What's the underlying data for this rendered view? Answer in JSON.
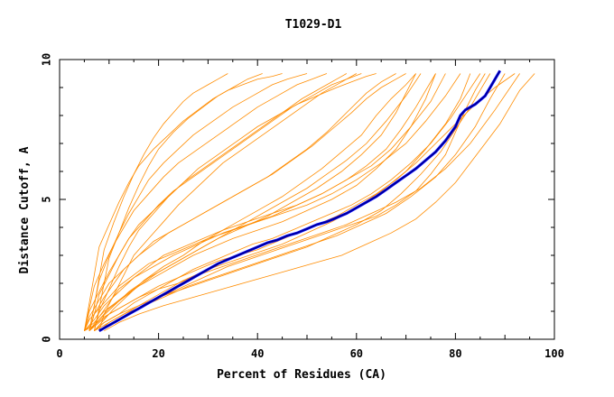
{
  "chart_data": {
    "type": "line",
    "title": "T1029-D1",
    "xlabel": "Percent of Residues (CA)",
    "ylabel": "Distance Cutoff, A",
    "xlim": [
      0,
      100
    ],
    "ylim": [
      0,
      10
    ],
    "xticks": [
      0,
      20,
      40,
      60,
      80,
      100
    ],
    "yticks": [
      0,
      5,
      10
    ],
    "grid": false,
    "colors": {
      "models": "#ff8c00",
      "highlight": "#00008b",
      "highlight_outline": "#0000ff"
    },
    "series": [
      {
        "x": [
          5,
          7,
          9,
          11,
          14,
          17,
          20,
          24,
          28,
          32,
          36,
          40,
          44,
          48,
          52,
          56,
          60,
          64,
          68,
          72,
          76,
          80,
          84,
          88,
          92
        ],
        "y": [
          0.3,
          0.5,
          0.8,
          1.0,
          1.3,
          1.6,
          1.9,
          2.2,
          2.5,
          2.8,
          3.0,
          3.2,
          3.5,
          3.8,
          4.1,
          4.4,
          4.8,
          5.2,
          5.7,
          6.3,
          7.0,
          7.7,
          8.4,
          9.0,
          9.5
        ]
      },
      {
        "x": [
          6,
          8,
          10,
          13,
          16,
          20,
          24,
          28,
          33,
          38,
          43,
          48,
          53,
          58,
          63,
          68,
          73,
          78,
          83,
          88,
          93
        ],
        "y": [
          0.3,
          0.6,
          0.9,
          1.2,
          1.5,
          1.8,
          2.0,
          2.3,
          2.6,
          2.9,
          3.2,
          3.5,
          3.8,
          4.1,
          4.5,
          4.9,
          5.4,
          6.1,
          7.0,
          8.2,
          9.5
        ]
      },
      {
        "x": [
          7,
          9,
          12,
          15,
          19,
          23,
          27,
          31,
          35,
          39,
          43,
          47,
          51,
          55,
          59,
          63,
          67,
          71,
          75,
          79,
          82,
          85
        ],
        "y": [
          0.3,
          0.6,
          0.9,
          1.3,
          1.7,
          2.1,
          2.5,
          2.8,
          3.1,
          3.4,
          3.6,
          3.9,
          4.2,
          4.5,
          4.8,
          5.2,
          5.7,
          6.3,
          7.0,
          7.9,
          8.7,
          9.5
        ]
      },
      {
        "x": [
          5,
          6,
          8,
          10,
          12,
          15,
          18,
          22,
          26,
          30,
          35,
          40,
          45,
          50,
          55,
          60,
          65,
          70,
          74,
          78,
          81
        ],
        "y": [
          0.3,
          0.7,
          1.1,
          1.5,
          1.9,
          2.3,
          2.7,
          3.0,
          3.3,
          3.6,
          3.9,
          4.2,
          4.5,
          4.8,
          5.2,
          5.7,
          6.3,
          7.0,
          7.8,
          8.7,
          9.5
        ]
      },
      {
        "x": [
          6,
          8,
          10,
          12,
          15,
          18,
          21,
          25,
          29,
          33,
          38,
          43,
          48,
          53,
          58,
          63,
          67,
          71,
          75,
          78
        ],
        "y": [
          0.3,
          0.8,
          1.3,
          1.8,
          2.2,
          2.6,
          3.0,
          3.3,
          3.6,
          3.9,
          4.2,
          4.5,
          4.8,
          5.2,
          5.7,
          6.2,
          6.8,
          7.6,
          8.5,
          9.5
        ]
      },
      {
        "x": [
          7,
          10,
          13,
          17,
          21,
          26,
          31,
          36,
          41,
          46,
          51,
          56,
          61,
          66,
          71,
          76,
          80,
          84,
          87,
          90
        ],
        "y": [
          0.3,
          0.6,
          0.9,
          1.2,
          1.5,
          1.9,
          2.2,
          2.5,
          2.8,
          3.1,
          3.4,
          3.7,
          4.1,
          4.5,
          5.1,
          5.8,
          6.6,
          7.6,
          8.6,
          9.5
        ]
      },
      {
        "x": [
          8,
          11,
          15,
          19,
          24,
          29,
          34,
          39,
          44,
          49,
          54,
          59,
          64,
          68,
          72,
          75,
          78,
          80,
          82,
          84,
          86
        ],
        "y": [
          0.3,
          0.6,
          1.0,
          1.4,
          1.8,
          2.2,
          2.6,
          2.9,
          3.2,
          3.5,
          3.8,
          4.1,
          4.4,
          4.8,
          5.3,
          5.9,
          6.6,
          7.4,
          8.2,
          8.9,
          9.5
        ]
      },
      {
        "x": [
          5,
          7,
          9,
          12,
          15,
          19,
          23,
          28,
          33,
          38,
          43,
          48,
          53,
          58,
          62,
          66,
          69,
          72,
          74,
          76
        ],
        "y": [
          0.3,
          0.7,
          1.2,
          1.7,
          2.2,
          2.6,
          3.0,
          3.4,
          3.8,
          4.1,
          4.4,
          4.8,
          5.2,
          5.7,
          6.2,
          6.8,
          7.5,
          8.3,
          8.9,
          9.5
        ]
      },
      {
        "x": [
          9,
          12,
          16,
          21,
          27,
          33,
          39,
          45,
          51,
          57,
          62,
          67,
          72,
          76,
          80,
          83,
          86,
          89,
          91,
          93,
          96
        ],
        "y": [
          0.3,
          0.6,
          0.9,
          1.2,
          1.5,
          1.8,
          2.1,
          2.4,
          2.7,
          3.0,
          3.4,
          3.8,
          4.3,
          4.9,
          5.6,
          6.3,
          7.0,
          7.7,
          8.3,
          8.9,
          9.5
        ]
      },
      {
        "x": [
          6,
          8,
          11,
          14,
          18,
          22,
          26,
          30,
          34,
          38,
          42,
          46,
          50,
          54,
          58,
          62,
          66,
          70,
          73
        ],
        "y": [
          0.3,
          0.7,
          1.2,
          1.7,
          2.2,
          2.6,
          3.0,
          3.4,
          3.8,
          4.2,
          4.6,
          5.0,
          5.4,
          5.9,
          6.4,
          7.0,
          7.8,
          8.7,
          9.5
        ]
      },
      {
        "x": [
          5,
          6,
          8,
          10,
          13,
          16,
          19,
          22,
          26,
          30,
          34,
          38,
          42,
          46,
          50,
          54,
          58,
          62,
          65,
          68
        ],
        "y": [
          0.3,
          0.8,
          1.4,
          2.0,
          2.5,
          3.0,
          3.4,
          3.8,
          4.2,
          4.6,
          5.0,
          5.4,
          5.8,
          6.3,
          6.8,
          7.4,
          8.1,
          8.8,
          9.2,
          9.5
        ]
      },
      {
        "x": [
          7,
          9,
          11,
          14,
          17,
          21,
          25,
          29,
          33,
          37,
          41,
          45,
          49,
          53,
          57,
          61,
          64,
          67,
          70,
          72
        ],
        "y": [
          0.3,
          0.7,
          1.1,
          1.6,
          2.1,
          2.6,
          3.0,
          3.5,
          3.9,
          4.3,
          4.7,
          5.1,
          5.6,
          6.1,
          6.7,
          7.3,
          8.0,
          8.6,
          9.1,
          9.5
        ]
      },
      {
        "x": [
          6,
          7,
          9,
          11,
          13,
          16,
          19,
          23,
          27,
          31,
          35,
          39,
          43,
          47,
          51,
          55,
          59,
          62,
          65,
          68,
          70
        ],
        "y": [
          0.3,
          0.9,
          1.5,
          2.0,
          2.5,
          3.0,
          3.5,
          3.9,
          4.3,
          4.7,
          5.1,
          5.5,
          5.9,
          6.4,
          6.9,
          7.5,
          8.1,
          8.6,
          9.0,
          9.3,
          9.5
        ]
      },
      {
        "x": [
          5,
          6,
          8,
          10,
          12,
          14,
          16,
          19,
          22,
          25,
          28,
          32,
          36,
          40,
          44,
          48,
          52,
          56,
          59,
          62,
          64
        ],
        "y": [
          0.3,
          1.0,
          1.7,
          2.4,
          3.0,
          3.6,
          4.1,
          4.6,
          5.1,
          5.6,
          6.1,
          6.6,
          7.1,
          7.6,
          8.0,
          8.4,
          8.7,
          9.0,
          9.2,
          9.4,
          9.5
        ]
      },
      {
        "x": [
          6,
          7,
          8,
          10,
          12,
          14,
          17,
          20,
          23,
          27,
          31,
          35,
          39,
          43,
          47,
          51,
          55,
          58,
          61
        ],
        "y": [
          0.3,
          0.9,
          1.6,
          2.3,
          3.0,
          3.6,
          4.2,
          4.8,
          5.3,
          5.8,
          6.3,
          6.8,
          7.3,
          7.8,
          8.3,
          8.7,
          9.1,
          9.3,
          9.5
        ]
      },
      {
        "x": [
          7,
          8,
          10,
          12,
          14,
          16,
          19,
          22,
          25,
          29,
          33,
          37,
          41,
          45,
          49,
          53,
          56,
          58
        ],
        "y": [
          0.3,
          1.0,
          1.8,
          2.6,
          3.3,
          3.9,
          4.5,
          5.1,
          5.6,
          6.1,
          6.6,
          7.1,
          7.6,
          8.1,
          8.6,
          9.0,
          9.3,
          9.5
        ]
      },
      {
        "x": [
          5,
          6,
          7,
          9,
          11,
          13,
          15,
          18,
          21,
          24,
          28,
          32,
          36,
          40,
          44,
          48,
          51,
          54
        ],
        "y": [
          0.3,
          1.1,
          1.9,
          2.7,
          3.4,
          4.0,
          4.6,
          5.2,
          5.8,
          6.3,
          6.8,
          7.3,
          7.8,
          8.3,
          8.7,
          9.1,
          9.3,
          9.5
        ]
      },
      {
        "x": [
          6,
          7,
          8,
          10,
          12,
          14,
          16,
          18,
          21,
          24,
          27,
          31,
          35,
          39,
          43,
          46,
          48,
          50
        ],
        "y": [
          0.3,
          1.2,
          2.1,
          3.0,
          3.8,
          4.5,
          5.1,
          5.7,
          6.3,
          6.8,
          7.3,
          7.8,
          8.3,
          8.7,
          9.1,
          9.3,
          9.4,
          9.5
        ]
      },
      {
        "x": [
          5,
          6,
          7,
          8,
          10,
          12,
          14,
          16,
          19,
          22,
          25,
          28,
          31,
          34,
          37,
          40,
          43,
          45
        ],
        "y": [
          0.3,
          1.3,
          2.3,
          3.3,
          4.1,
          4.9,
          5.6,
          6.2,
          6.8,
          7.3,
          7.8,
          8.2,
          8.6,
          8.9,
          9.1,
          9.3,
          9.4,
          9.5
        ]
      },
      {
        "x": [
          6,
          7,
          8,
          9,
          11,
          13,
          15,
          17,
          19,
          21,
          23,
          25,
          27,
          30,
          32,
          34
        ],
        "y": [
          0.3,
          1.2,
          2.2,
          3.2,
          4.2,
          5.1,
          5.9,
          6.6,
          7.2,
          7.7,
          8.1,
          8.5,
          8.8,
          9.1,
          9.3,
          9.5
        ]
      },
      {
        "x": [
          7,
          8,
          9,
          10,
          12,
          14,
          16,
          18,
          20,
          23,
          26,
          29,
          32,
          35,
          38,
          41
        ],
        "y": [
          0.3,
          1.1,
          2.0,
          2.9,
          3.8,
          4.7,
          5.5,
          6.2,
          6.8,
          7.4,
          7.9,
          8.3,
          8.7,
          9.0,
          9.3,
          9.5
        ]
      },
      {
        "x": [
          8,
          9,
          11,
          13,
          15,
          18,
          21,
          24,
          27,
          30,
          33,
          37,
          41,
          45,
          49,
          53,
          57,
          60
        ],
        "y": [
          0.3,
          0.9,
          1.6,
          2.3,
          3.0,
          3.6,
          4.2,
          4.8,
          5.3,
          5.8,
          6.3,
          6.8,
          7.3,
          7.8,
          8.3,
          8.8,
          9.2,
          9.5
        ]
      },
      {
        "x": [
          6,
          8,
          10,
          13,
          16,
          20,
          24,
          28,
          32,
          37,
          42,
          47,
          52,
          57,
          61,
          65,
          68,
          70,
          72
        ],
        "y": [
          0.3,
          0.7,
          1.1,
          1.5,
          1.9,
          2.4,
          2.8,
          3.2,
          3.6,
          4.0,
          4.4,
          4.9,
          5.4,
          6.0,
          6.6,
          7.3,
          8.1,
          8.8,
          9.5
        ]
      },
      {
        "x": [
          5,
          7,
          9,
          12,
          15,
          19,
          23,
          27,
          31,
          35,
          40,
          45,
          50,
          55,
          60,
          64,
          68,
          71,
          74,
          76
        ],
        "y": [
          0.3,
          0.6,
          1.0,
          1.4,
          1.8,
          2.2,
          2.6,
          3.0,
          3.3,
          3.6,
          3.9,
          4.2,
          4.6,
          5.0,
          5.5,
          6.1,
          6.8,
          7.6,
          8.6,
          9.5
        ]
      },
      {
        "x": [
          8,
          10,
          13,
          17,
          21,
          25,
          30,
          35,
          40,
          45,
          50,
          55,
          60,
          65,
          70,
          74,
          78,
          81,
          83
        ],
        "y": [
          0.3,
          0.6,
          0.9,
          1.3,
          1.7,
          2.1,
          2.5,
          2.8,
          3.1,
          3.4,
          3.8,
          4.2,
          4.7,
          5.3,
          6.0,
          6.8,
          7.7,
          8.6,
          9.5
        ]
      },
      {
        "x": [
          7,
          9,
          12,
          16,
          20,
          25,
          30,
          35,
          40,
          45,
          50,
          55,
          60,
          65,
          69,
          73,
          77,
          80,
          83,
          85,
          87
        ],
        "y": [
          0.3,
          0.6,
          0.9,
          1.2,
          1.5,
          1.8,
          2.1,
          2.4,
          2.7,
          3.0,
          3.3,
          3.7,
          4.1,
          4.6,
          5.2,
          5.9,
          6.7,
          7.5,
          8.3,
          8.9,
          9.5
        ]
      }
    ],
    "highlight_series": {
      "x": [
        8,
        10,
        12,
        14,
        16,
        18,
        20,
        22,
        24,
        26,
        28,
        30,
        32,
        34,
        36,
        38,
        40,
        42,
        44,
        46,
        48,
        50,
        52,
        54,
        56,
        58,
        60,
        62,
        64,
        66,
        68,
        70,
        72,
        74,
        76,
        78,
        80,
        81,
        82,
        84,
        86,
        87,
        88,
        89
      ],
      "y": [
        0.3,
        0.5,
        0.7,
        0.9,
        1.1,
        1.3,
        1.5,
        1.7,
        1.9,
        2.1,
        2.3,
        2.5,
        2.7,
        2.85,
        3.0,
        3.15,
        3.3,
        3.45,
        3.55,
        3.7,
        3.8,
        3.95,
        4.1,
        4.2,
        4.35,
        4.5,
        4.7,
        4.9,
        5.1,
        5.35,
        5.6,
        5.85,
        6.1,
        6.4,
        6.7,
        7.1,
        7.6,
        8.0,
        8.2,
        8.4,
        8.7,
        9.0,
        9.3,
        9.6
      ]
    }
  }
}
